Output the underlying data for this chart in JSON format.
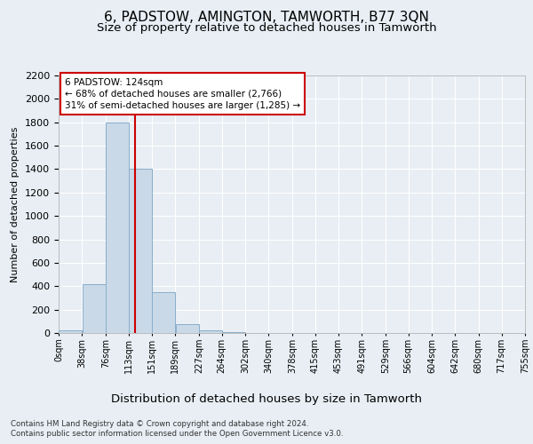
{
  "title": "6, PADSTOW, AMINGTON, TAMWORTH, B77 3QN",
  "subtitle": "Size of property relative to detached houses in Tamworth",
  "xlabel": "Distribution of detached houses by size in Tamworth",
  "ylabel": "Number of detached properties",
  "footer_line1": "Contains HM Land Registry data © Crown copyright and database right 2024.",
  "footer_line2": "Contains public sector information licensed under the Open Government Licence v3.0.",
  "bin_edges": [
    0,
    38,
    76,
    113,
    151,
    189,
    227,
    264,
    302,
    340,
    378,
    415,
    453,
    491,
    529,
    566,
    604,
    642,
    680,
    717,
    755
  ],
  "bin_labels": [
    "0sqm",
    "38sqm",
    "76sqm",
    "113sqm",
    "151sqm",
    "189sqm",
    "227sqm",
    "264sqm",
    "302sqm",
    "340sqm",
    "378sqm",
    "415sqm",
    "453sqm",
    "491sqm",
    "529sqm",
    "566sqm",
    "604sqm",
    "642sqm",
    "680sqm",
    "717sqm",
    "755sqm"
  ],
  "bar_heights": [
    20,
    420,
    1800,
    1400,
    350,
    75,
    25,
    5,
    0,
    0,
    0,
    0,
    0,
    0,
    0,
    0,
    0,
    0,
    0,
    0
  ],
  "bar_color": "#c9d9e8",
  "bar_edgecolor": "#88aec8",
  "property_size": 124,
  "vline_color": "#cc0000",
  "annotation_text": "6 PADSTOW: 124sqm\n← 68% of detached houses are smaller (2,766)\n31% of semi-detached houses are larger (1,285) →",
  "annotation_box_color": "#ffffff",
  "annotation_box_edgecolor": "#cc0000",
  "ylim": [
    0,
    2200
  ],
  "yticks": [
    0,
    200,
    400,
    600,
    800,
    1000,
    1200,
    1400,
    1600,
    1800,
    2000,
    2200
  ],
  "background_color": "#e8eef4",
  "plot_background_color": "#e8eef4",
  "grid_color": "#ffffff",
  "title_fontsize": 11,
  "subtitle_fontsize": 9.5,
  "xlabel_fontsize": 9.5
}
